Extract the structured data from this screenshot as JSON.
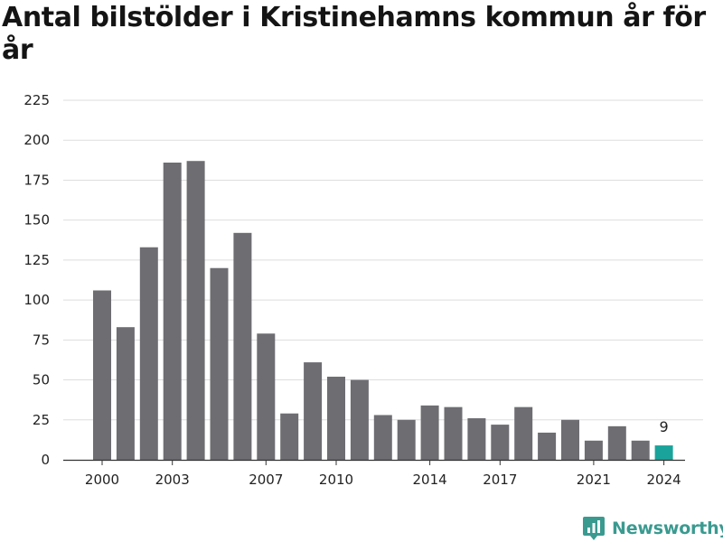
{
  "title": "Antal bilstölder i Kristinehamns kommun år för år",
  "brand": {
    "name": "Newsworthy",
    "icon": "newsworthy-logo-icon",
    "color": "#3a9a90"
  },
  "colors": {
    "bar": "#6e6d72",
    "highlight": "#1aa39a",
    "grid": "#dddddd",
    "axis": "#333333"
  },
  "chart_data": {
    "type": "bar",
    "title": "Antal bilstölder i Kristinehamns kommun år för år",
    "xlabel": "",
    "ylabel": "",
    "categories": [
      "2000",
      "2001",
      "2002",
      "2003",
      "2004",
      "2005",
      "2006",
      "2007",
      "2008",
      "2009",
      "2010",
      "2011",
      "2012",
      "2013",
      "2014",
      "2015",
      "2016",
      "2017",
      "2018",
      "2019",
      "2020",
      "2021",
      "2022",
      "2023",
      "2024"
    ],
    "values": [
      106,
      83,
      133,
      186,
      187,
      120,
      142,
      79,
      29,
      61,
      52,
      50,
      28,
      25,
      34,
      33,
      26,
      22,
      33,
      17,
      25,
      12,
      21,
      12,
      9
    ],
    "x_tick_labels": [
      "2000",
      "2003",
      "2007",
      "2010",
      "2014",
      "2017",
      "2021",
      "2024"
    ],
    "y_ticks": [
      0,
      25,
      50,
      75,
      100,
      125,
      150,
      175,
      200,
      225
    ],
    "ylim": [
      0,
      225
    ],
    "grid": true,
    "legend": "none",
    "highlight_category": "2024",
    "data_labels": [
      {
        "category": "2024",
        "text": "9"
      }
    ]
  }
}
